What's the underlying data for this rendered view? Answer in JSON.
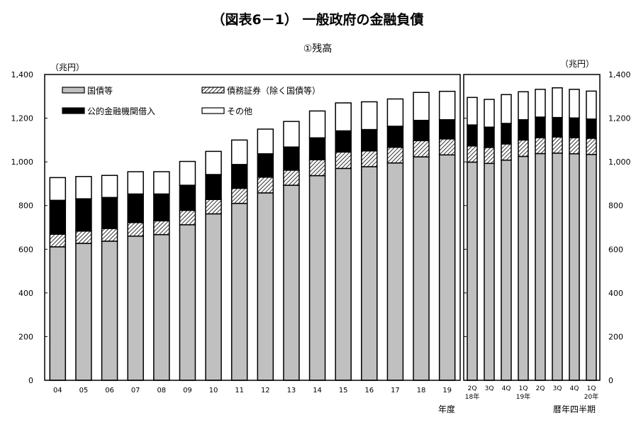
{
  "chart_data": [
    {
      "type": "bar",
      "stacked": true,
      "title": "（図表6－1） 一般政府の金融負債",
      "subtitle": "①残高",
      "ylabel": "（兆円）",
      "xlabel": "年度",
      "ylim": [
        0,
        1400
      ],
      "yticks": [
        "0",
        "200",
        "400",
        "600",
        "800",
        "1,000",
        "1,200",
        "1,400"
      ],
      "legend_position": "top-left",
      "categories": [
        "04",
        "05",
        "06",
        "07",
        "08",
        "09",
        "10",
        "11",
        "12",
        "13",
        "14",
        "15",
        "16",
        "17",
        "18",
        "19"
      ],
      "series": [
        {
          "name": "国債等",
          "color": "#c0c0c0",
          "values": [
            611,
            627,
            637,
            660,
            667,
            712,
            762,
            810,
            858,
            893,
            937,
            970,
            978,
            995,
            1023,
            1032
          ]
        },
        {
          "name": "債務証券（除く国債等）",
          "pattern": "hatch",
          "values": [
            58,
            56,
            58,
            62,
            63,
            66,
            66,
            69,
            72,
            69,
            73,
            75,
            72,
            72,
            74,
            73
          ]
        },
        {
          "name": "公的金融機関借入",
          "color": "#000000",
          "values": [
            155,
            148,
            142,
            131,
            123,
            115,
            114,
            109,
            107,
            106,
            100,
            97,
            98,
            96,
            93,
            88
          ]
        },
        {
          "name": "その他",
          "color": "#ffffff",
          "values": [
            104,
            102,
            101,
            102,
            102,
            109,
            106,
            112,
            113,
            117,
            123,
            128,
            127,
            125,
            128,
            130
          ]
        }
      ]
    },
    {
      "type": "bar",
      "stacked": true,
      "ylabel": "（兆円）",
      "xlabel": "暦年四半期",
      "ylim": [
        0,
        1400
      ],
      "yticks": [
        "0",
        "200",
        "400",
        "600",
        "800",
        "1,000",
        "1,200",
        "1,400"
      ],
      "categories": [
        {
          "q": "2Q",
          "year": "18年"
        },
        {
          "q": "3Q",
          "year": ""
        },
        {
          "q": "4Q",
          "year": ""
        },
        {
          "q": "1Q",
          "year": "19年"
        },
        {
          "q": "2Q",
          "year": ""
        },
        {
          "q": "3Q",
          "year": ""
        },
        {
          "q": "4Q",
          "year": ""
        },
        {
          "q": "1Q",
          "year": "20年"
        }
      ],
      "series": [
        {
          "name": "国債等",
          "values": [
            999,
            993,
            1008,
            1025,
            1038,
            1040,
            1037,
            1034
          ]
        },
        {
          "name": "債務証券（除く国債等）",
          "values": [
            74,
            73,
            74,
            75,
            73,
            74,
            74,
            74
          ]
        },
        {
          "name": "公的金融機関借入",
          "values": [
            96,
            93,
            94,
            93,
            94,
            89,
            90,
            88
          ]
        },
        {
          "name": "その他",
          "values": [
            126,
            127,
            132,
            128,
            127,
            136,
            131,
            128
          ]
        }
      ]
    }
  ]
}
